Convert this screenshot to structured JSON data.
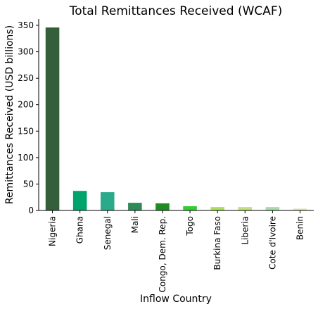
{
  "chart_data": {
    "type": "bar",
    "title": "Total Remittances Received (WCAF)",
    "xlabel": "Inflow Country",
    "ylabel": "Remittances Received (USD billions)",
    "categories": [
      "Nigeria",
      "Ghana",
      "Senegal",
      "Mali",
      "Congo, Dem. Rep.",
      "Togo",
      "Burkina Faso",
      "Liberia",
      "Cote d'Ivoire",
      "Benin"
    ],
    "values": [
      346,
      37,
      34.5,
      14.5,
      13.5,
      8,
      6.5,
      6.5,
      6.5,
      3.5
    ],
    "colors": [
      "#355e3b",
      "#00a36c",
      "#2aaa8a",
      "#2e8b57",
      "#228b22",
      "#32cd32",
      "#aae05a",
      "#c1e17a",
      "#a8dba8",
      "#d8ebb5"
    ],
    "ylim": [
      0,
      362
    ],
    "yticks": [
      0,
      50,
      100,
      150,
      200,
      250,
      300,
      350
    ],
    "grid": false,
    "legend": "none"
  }
}
